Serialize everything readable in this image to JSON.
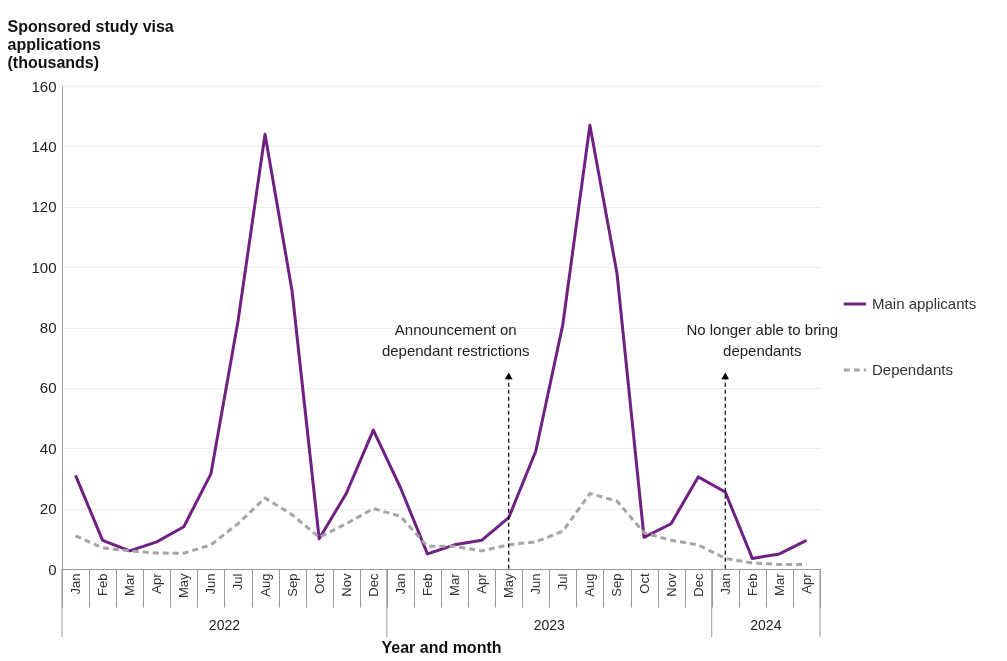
{
  "chart_data": {
    "type": "line",
    "ylabel": "Sponsored study visa applications (thousands)",
    "xlabel": "Year and month",
    "x": [
      "2022-01",
      "2022-02",
      "2022-03",
      "2022-04",
      "2022-05",
      "2022-06",
      "2022-07",
      "2022-08",
      "2022-09",
      "2022-10",
      "2022-11",
      "2022-12",
      "2023-01",
      "2023-02",
      "2023-03",
      "2023-04",
      "2023-05",
      "2023-06",
      "2023-07",
      "2023-08",
      "2023-09",
      "2023-10",
      "2023-11",
      "2023-12",
      "2024-01",
      "2024-02",
      "2024-03",
      "2024-04"
    ],
    "xticks": [
      {
        "value": "2022-01",
        "label": "Jan"
      },
      {
        "value": "2022-02",
        "label": "Feb"
      },
      {
        "value": "2022-03",
        "label": "Mar"
      },
      {
        "value": "2022-04",
        "label": "Apr"
      },
      {
        "value": "2022-05",
        "label": "May"
      },
      {
        "value": "2022-06",
        "label": "Jun"
      },
      {
        "value": "2022-07",
        "label": "Jul"
      },
      {
        "value": "2022-08",
        "label": "Aug"
      },
      {
        "value": "2022-09",
        "label": "Sep"
      },
      {
        "value": "2022-10",
        "label": "Oct"
      },
      {
        "value": "2022-11",
        "label": "Nov"
      },
      {
        "value": "2022-12",
        "label": "Dec"
      },
      {
        "value": "2023-01",
        "label": "Jan"
      },
      {
        "value": "2023-02",
        "label": "Feb"
      },
      {
        "value": "2023-03",
        "label": "Mar"
      },
      {
        "value": "2023-04",
        "label": "Apr"
      },
      {
        "value": "2023-05",
        "label": "May"
      },
      {
        "value": "2023-06",
        "label": "Jun"
      },
      {
        "value": "2023-07",
        "label": "Jul"
      },
      {
        "value": "2023-08",
        "label": "Aug"
      },
      {
        "value": "2023-09",
        "label": "Sep"
      },
      {
        "value": "2023-10",
        "label": "Oct"
      },
      {
        "value": "2023-11",
        "label": "Nov"
      },
      {
        "value": "2023-12",
        "label": "Dec"
      },
      {
        "value": "2024-01",
        "label": "Jan"
      },
      {
        "value": "2024-02",
        "label": "Feb"
      },
      {
        "value": "2024-03",
        "label": "Mar"
      },
      {
        "value": "2024-04",
        "label": "Apr"
      }
    ],
    "series": [
      {
        "name": "Main applicants",
        "color": "#702082",
        "line_style": "solid",
        "values": [
          31,
          9.5,
          6,
          9,
          14,
          31.5,
          82,
          144,
          92,
          10,
          25,
          46,
          27,
          5,
          8,
          9.5,
          17,
          39,
          81,
          147,
          98,
          10.5,
          15,
          30.5,
          25.5,
          3.5,
          5,
          9.5
        ]
      },
      {
        "name": "Dependants",
        "color": "#a5a5a5",
        "line_style": "dashed",
        "values": [
          11,
          7,
          6,
          5.3,
          5.2,
          8,
          15,
          23.5,
          18,
          10.5,
          15,
          20,
          17.5,
          7.5,
          7.5,
          6,
          8,
          9,
          12.5,
          25,
          22.5,
          12,
          9.5,
          8,
          3.5,
          2,
          1.5,
          1.5
        ]
      }
    ],
    "ylim": [
      0,
      160
    ],
    "yticks": [
      0,
      20,
      40,
      60,
      80,
      100,
      120,
      140,
      160
    ],
    "grid": "y",
    "legend": "right",
    "marker": "none",
    "xlim": [
      "2021-12-16",
      "2024-04-16"
    ],
    "annotations": [
      "2022",
      "2023",
      "2024",
      {
        "text": "Announcement on dependant restrictions",
        "x": "2023-05",
        "y": 64
      },
      {
        "text": "No longer able to bring dependants",
        "x": "2024-01",
        "y": 64
      }
    ]
  }
}
